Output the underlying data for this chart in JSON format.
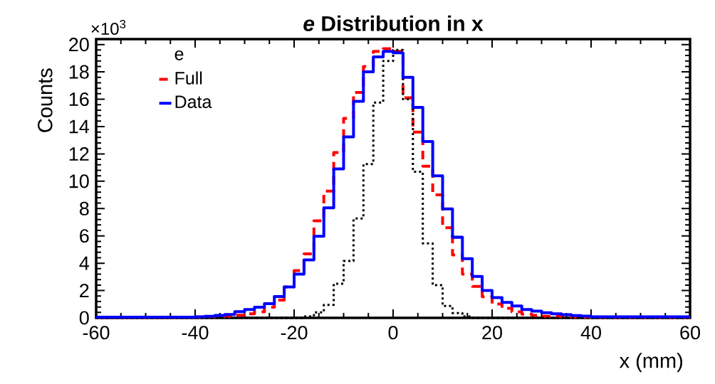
{
  "chart_data": {
    "type": "histogram",
    "title": "*e* Distribution in x",
    "xlabel": "x (mm)",
    "ylabel": "Counts",
    "legend_title": "e",
    "annotations": [
      "×10$^{3}$"
    ],
    "bins": [
      -60,
      -58,
      -56,
      -54,
      -52,
      -50,
      -48,
      -46,
      -44,
      -42,
      -40,
      -38,
      -36,
      -34,
      -32,
      -30,
      -28,
      -26,
      -24,
      -22,
      -20,
      -18,
      -16,
      -14,
      -12,
      -10,
      -8,
      -6,
      -4,
      -2,
      0,
      2,
      4,
      6,
      8,
      10,
      12,
      14,
      16,
      18,
      20,
      22,
      24,
      26,
      28,
      30,
      32,
      34,
      36,
      38,
      40,
      42,
      44,
      46,
      48,
      50,
      52,
      54,
      56,
      58,
      60
    ],
    "series": [
      {
        "name": "Full",
        "color": "#ff0000",
        "line_style": "dashed",
        "values": [
          0.04,
          0.04,
          0.04,
          0.04,
          0.04,
          0.04,
          0.04,
          0.04,
          0.04,
          0.04,
          0.06,
          0.08,
          0.1,
          0.12,
          0.2,
          0.3,
          0.44,
          0.78,
          1.3,
          2.27,
          3.46,
          4.68,
          7.1,
          9.27,
          12.1,
          14.6,
          16.5,
          18.4,
          19.5,
          19.7,
          19.5,
          16.1,
          13.6,
          11.1,
          9.0,
          6.6,
          4.6,
          3.2,
          2.3,
          1.55,
          1.02,
          0.7,
          0.44,
          0.27,
          0.18,
          0.12,
          0.1,
          0.08,
          0.06,
          0.05,
          0.04,
          0.04,
          0.04,
          0.04,
          0.04,
          0.04,
          0.04,
          0.04,
          0.04,
          0.04
        ]
      },
      {
        "color": "#000000",
        "line_style": "dotted",
        "values": [
          0,
          0,
          0,
          0,
          0,
          0,
          0,
          0,
          0,
          0,
          0,
          0,
          0,
          0,
          0,
          0,
          0,
          0,
          0,
          0,
          0,
          0.1,
          0.4,
          0.95,
          2.5,
          4.16,
          7.27,
          11.26,
          15.76,
          18.8,
          19.6,
          16.0,
          10.7,
          5.45,
          2.4,
          0.87,
          0.35,
          0.1,
          0,
          0,
          0,
          0,
          0,
          0,
          0,
          0,
          0,
          0,
          0,
          0,
          0,
          0,
          0,
          0,
          0,
          0,
          0,
          0,
          0,
          0
        ]
      },
      {
        "name": "Data",
        "color": "#0000ff",
        "line_style": "solid",
        "values": [
          0.05,
          0.05,
          0.05,
          0.05,
          0.05,
          0.05,
          0.05,
          0.05,
          0.05,
          0.05,
          0.08,
          0.12,
          0.18,
          0.25,
          0.45,
          0.61,
          0.78,
          1.04,
          1.56,
          2.27,
          3.2,
          4.24,
          5.97,
          8.05,
          10.9,
          13.25,
          15.84,
          18.0,
          19.1,
          19.5,
          19.4,
          17.6,
          15.4,
          12.9,
          10.4,
          7.97,
          5.9,
          4.33,
          3.03,
          2.0,
          1.48,
          1.13,
          0.87,
          0.61,
          0.49,
          0.38,
          0.3,
          0.23,
          0.17,
          0.13,
          0.08,
          0.08,
          0.08,
          0.08,
          0.08,
          0.08,
          0.08,
          0.08,
          0.08,
          0.08
        ]
      }
    ],
    "xlim": [
      -60,
      60
    ],
    "xticks": [
      -60,
      -40,
      -20,
      0,
      20,
      40,
      60
    ],
    "ylim": [
      0,
      20.4
    ],
    "yticks": [
      0,
      2,
      4,
      6,
      8,
      10,
      12,
      14,
      16,
      18,
      20
    ],
    "grid": false,
    "legend": "top left"
  }
}
